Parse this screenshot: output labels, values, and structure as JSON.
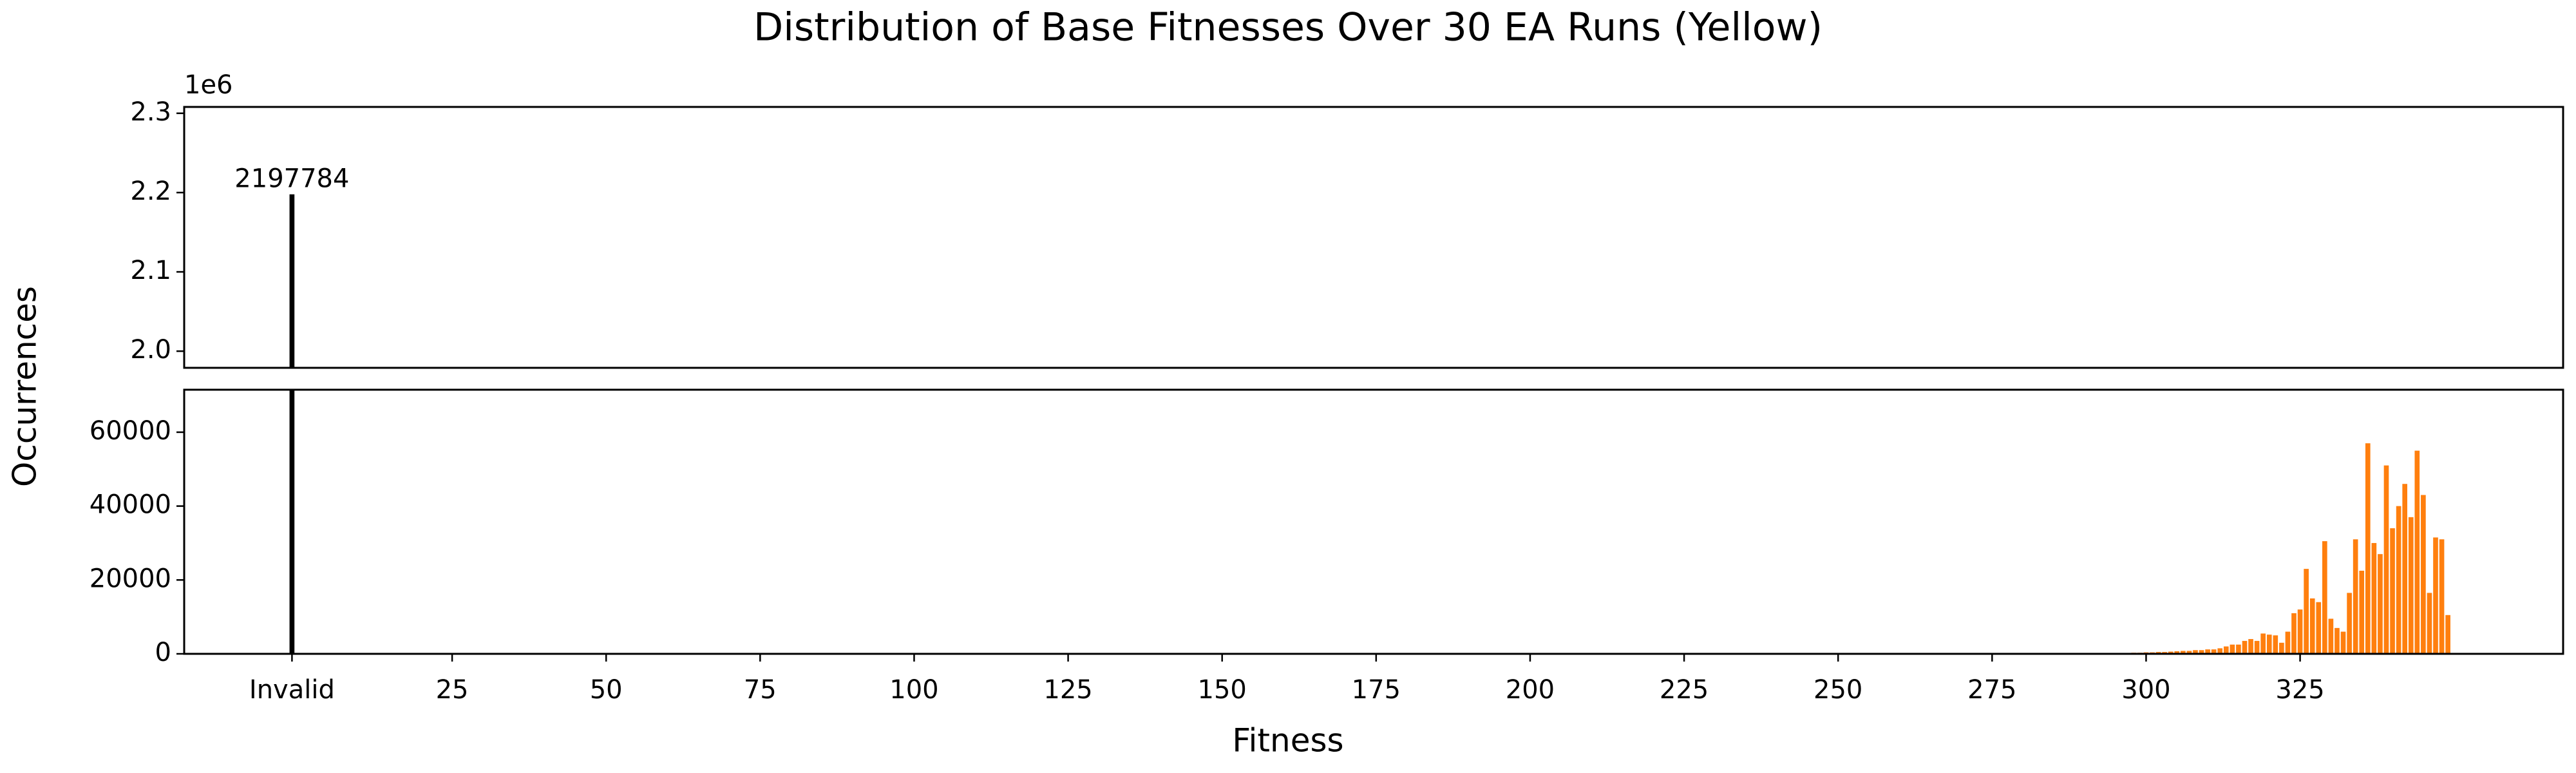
{
  "chart_data": {
    "type": "bar",
    "title": "Distribution of Base Fitnesses Over 30 EA Runs (Yellow)",
    "xlabel": "Fitness",
    "ylabel": "Occurrences",
    "xlim": [
      -18.5,
      367.7
    ],
    "xticks": [
      {
        "value": -1,
        "label": "Invalid"
      },
      25,
      50,
      75,
      100,
      125,
      150,
      175,
      200,
      225,
      250,
      275,
      300,
      325
    ],
    "panels": [
      {
        "ylim": [
          1979000,
          2308000
        ],
        "offset_label": "1e6",
        "yticks": [
          {
            "value": 2000000,
            "label": "2.0"
          },
          {
            "value": 2100000,
            "label": "2.1"
          },
          {
            "value": 2200000,
            "label": "2.2"
          },
          {
            "value": 2300000,
            "label": "2.3"
          }
        ]
      },
      {
        "ylim": [
          0,
          71500
        ],
        "yticks": [
          0,
          20000,
          40000,
          60000
        ]
      }
    ],
    "series": [
      {
        "color": "#000000",
        "x": [
          -1
        ],
        "values": [
          2197784
        ],
        "show_value_labels": true
      },
      {
        "color": "#ff7f0e",
        "x": [
          287,
          288,
          289,
          290,
          291,
          292,
          293,
          294,
          295,
          296,
          297,
          298,
          299,
          300,
          301,
          302,
          303,
          304,
          305,
          306,
          307,
          308,
          309,
          310,
          311,
          312,
          313,
          314,
          315,
          316,
          317,
          318,
          319,
          320,
          321,
          322,
          323,
          324,
          325,
          326,
          327,
          328,
          329,
          330,
          331,
          332,
          333,
          334,
          335,
          336,
          337,
          338,
          339,
          340,
          341,
          342,
          343,
          344,
          345,
          346,
          347,
          348,
          349
        ],
        "values": [
          20,
          30,
          40,
          50,
          60,
          80,
          100,
          100,
          150,
          200,
          200,
          300,
          300,
          400,
          400,
          500,
          500,
          600,
          700,
          800,
          800,
          1000,
          1000,
          1200,
          1200,
          1500,
          2000,
          2500,
          2500,
          3500,
          4000,
          3500,
          5500,
          5200,
          5000,
          3000,
          6000,
          11000,
          12000,
          23000,
          15000,
          14000,
          30500,
          9500,
          7000,
          6000,
          16500,
          31000,
          22500,
          57000,
          30000,
          27000,
          51000,
          34000,
          40000,
          46000,
          37000,
          55000,
          43000,
          16500,
          31500,
          31000,
          10500
        ]
      }
    ]
  }
}
